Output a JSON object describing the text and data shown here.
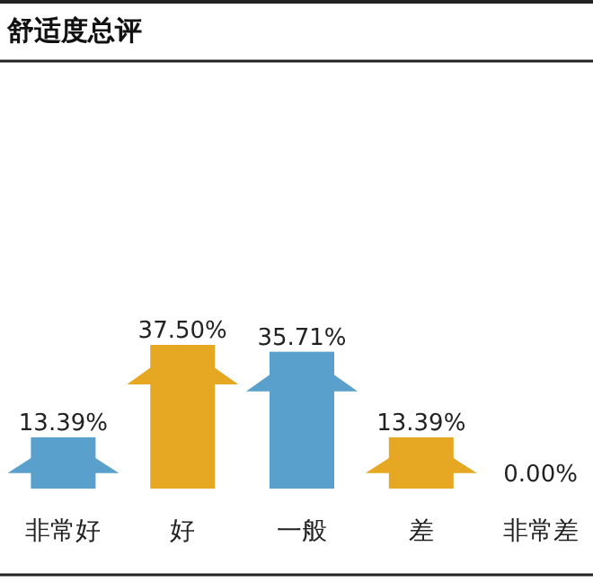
{
  "chart_data": {
    "type": "bar",
    "title": "舒适度总评",
    "categories": [
      "非常好",
      "好",
      "一般",
      "差",
      "非常差"
    ],
    "values": [
      13.39,
      37.5,
      35.71,
      13.39,
      0.0
    ],
    "colors": [
      "#5aa0cc",
      "#e6a823",
      "#5aa0cc",
      "#e6a823",
      "#5aa0cc"
    ],
    "value_labels": [
      "13.39%",
      "37.50%",
      "35.71%",
      "13.39%",
      "0.00%"
    ]
  }
}
